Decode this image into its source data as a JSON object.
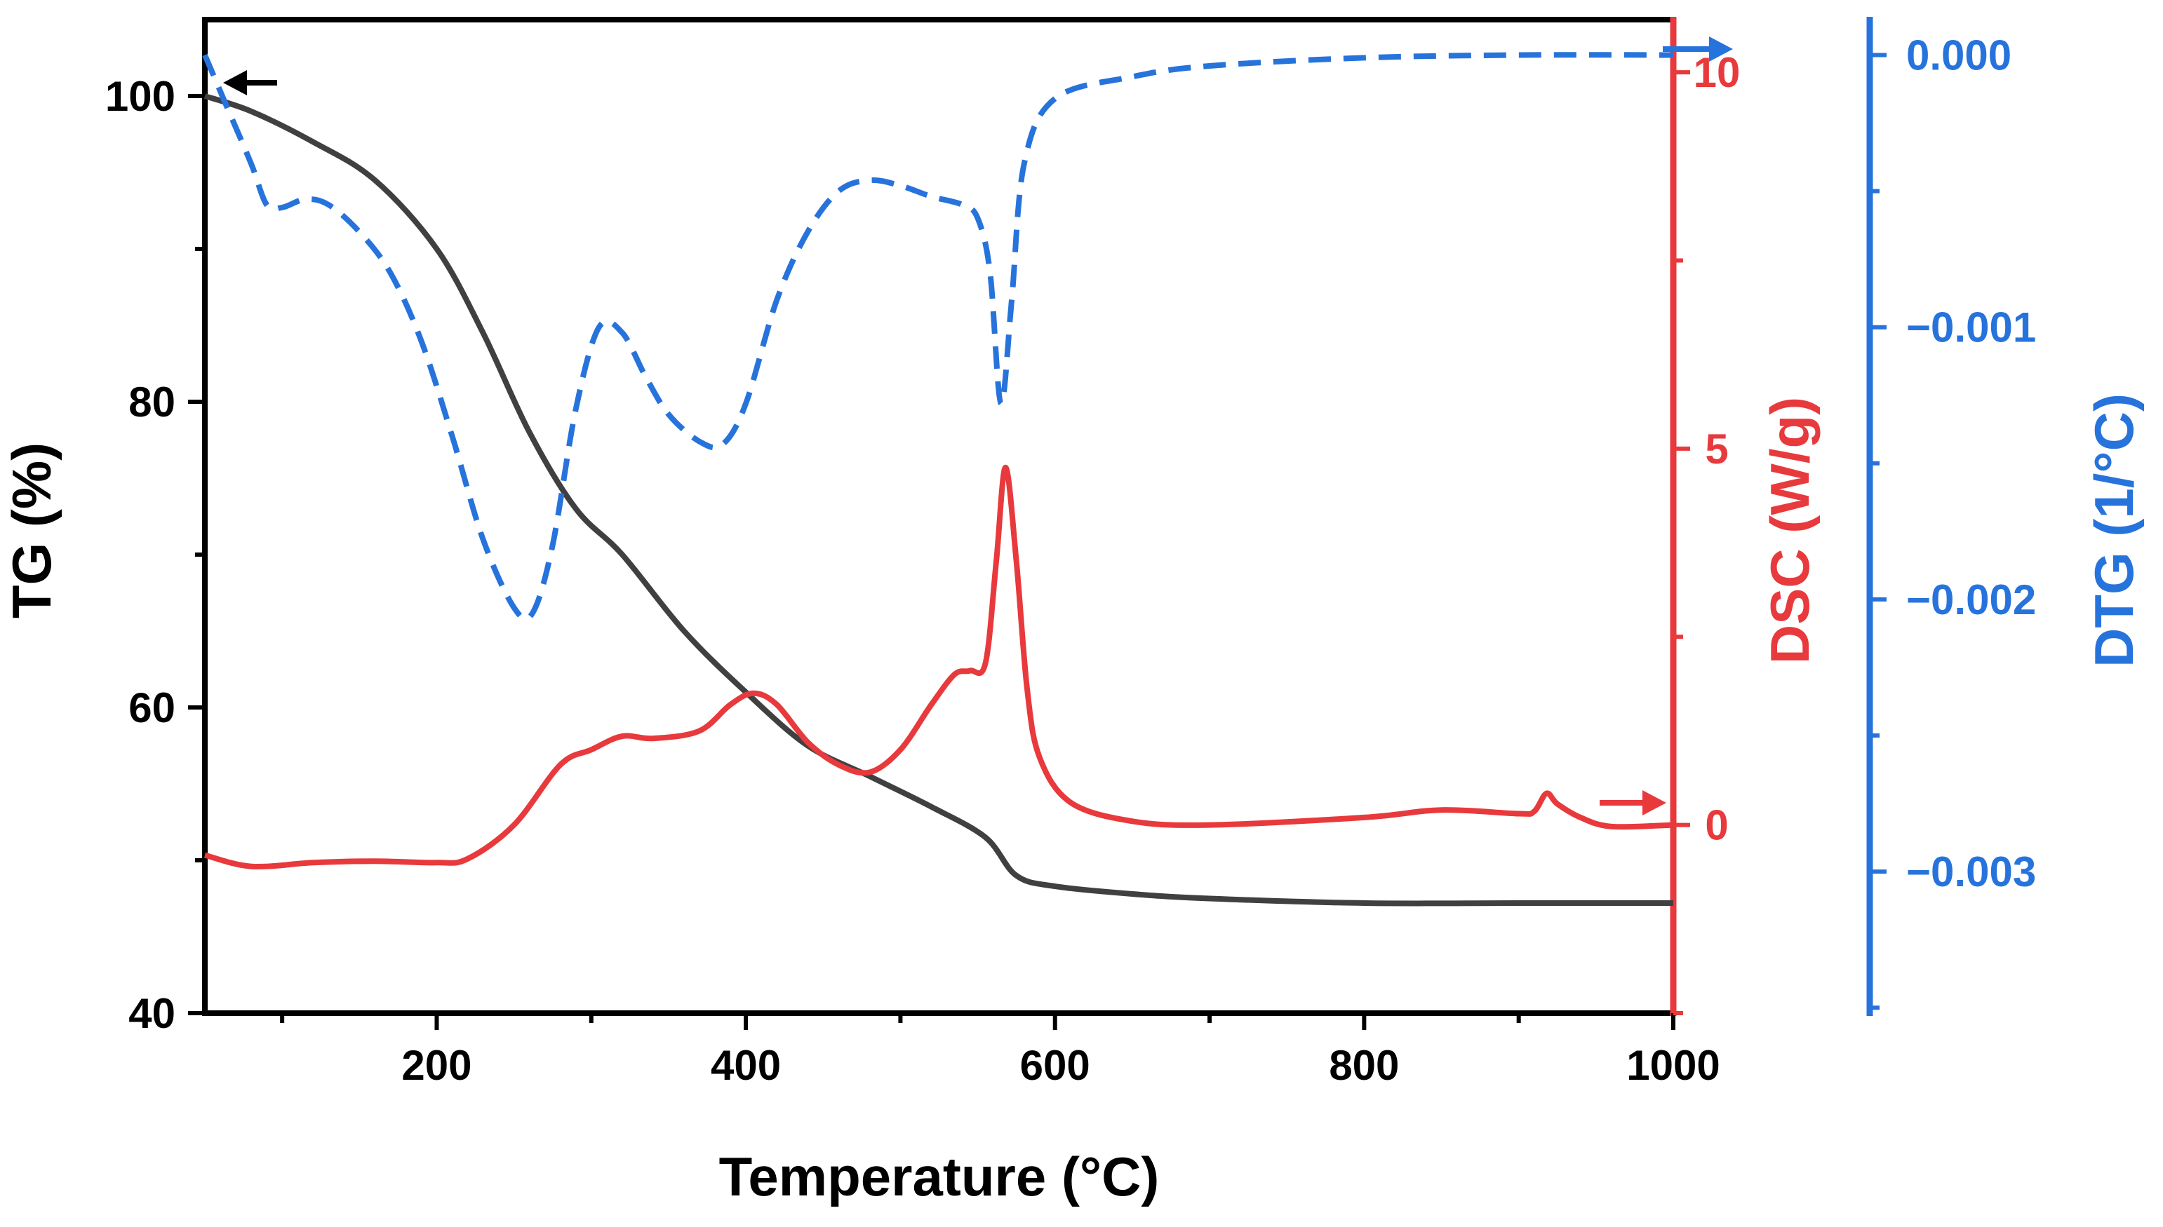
{
  "chart_data": {
    "type": "line",
    "xlabel": "Temperature (°C)",
    "xlim": [
      50,
      1000
    ],
    "x_ticks": [
      200,
      400,
      600,
      800,
      1000
    ],
    "axes": {
      "tg": {
        "label": "TG (%)",
        "range": [
          40,
          105
        ],
        "ticks": [
          40,
          60,
          80,
          100
        ],
        "color": "#000000",
        "side": "left"
      },
      "dsc": {
        "label": "DSC (W/g)",
        "range": [
          -2.5,
          10.7
        ],
        "ticks": [
          0,
          5,
          10
        ],
        "color": "#e8393c",
        "side": "right"
      },
      "dtg": {
        "label": "DTG (1/°C)",
        "range": [
          -0.00352,
          0.00013
        ],
        "ticks": [
          0.0,
          -0.001,
          -0.002,
          -0.003
        ],
        "tick_labels": [
          "0.000",
          "−0.001",
          "−0.002",
          "−0.003"
        ],
        "color": "#2773dc",
        "side": "right-outer"
      }
    },
    "series": [
      {
        "name": "TG",
        "axis": "tg",
        "color": "#404040",
        "style": "solid",
        "x": [
          50,
          80,
          120,
          160,
          200,
          230,
          260,
          290,
          320,
          360,
          400,
          440,
          480,
          520,
          555,
          575,
          600,
          650,
          700,
          800,
          900,
          1000
        ],
        "y": [
          100,
          99,
          97,
          94.5,
          90,
          84.5,
          78,
          73,
          70,
          65,
          61,
          57.5,
          55.5,
          53.5,
          51.5,
          49,
          48.3,
          47.8,
          47.5,
          47.2,
          47.2,
          47.2
        ]
      },
      {
        "name": "DSC",
        "axis": "dsc",
        "color": "#e8393c",
        "style": "solid",
        "x": [
          50,
          80,
          120,
          160,
          200,
          220,
          250,
          280,
          300,
          320,
          340,
          370,
          390,
          405,
          420,
          440,
          460,
          480,
          500,
          520,
          535,
          545,
          555,
          562,
          568,
          575,
          582,
          590,
          610,
          650,
          700,
          800,
          850,
          900,
          910,
          918,
          925,
          940,
          960,
          1000
        ],
        "y": [
          -0.4,
          -0.55,
          -0.5,
          -0.48,
          -0.5,
          -0.45,
          0,
          0.8,
          1.0,
          1.18,
          1.15,
          1.25,
          1.6,
          1.75,
          1.6,
          1.1,
          0.8,
          0.7,
          1.0,
          1.6,
          2.0,
          2.05,
          2.15,
          3.5,
          4.75,
          3.5,
          1.8,
          0.9,
          0.3,
          0.05,
          0,
          0.1,
          0.2,
          0.15,
          0.18,
          0.42,
          0.28,
          0.1,
          -0.02,
          0
        ]
      },
      {
        "name": "DTG",
        "axis": "dtg",
        "color": "#2773dc",
        "style": "dashed",
        "x": [
          50,
          65,
          80,
          90,
          100,
          115,
          130,
          150,
          170,
          190,
          210,
          230,
          250,
          262,
          275,
          290,
          305,
          320,
          335,
          350,
          370,
          385,
          400,
          420,
          440,
          460,
          480,
          500,
          520,
          540,
          550,
          558,
          565,
          572,
          580,
          600,
          650,
          700,
          800,
          900,
          1000
        ],
        "y": [
          0.0,
          -0.0002,
          -0.0004,
          -0.00055,
          -0.00056,
          -0.00053,
          -0.00055,
          -0.00065,
          -0.0008,
          -0.00105,
          -0.0014,
          -0.00178,
          -0.00203,
          -0.00205,
          -0.0018,
          -0.0013,
          -0.001,
          -0.00102,
          -0.00118,
          -0.00132,
          -0.00142,
          -0.00143,
          -0.00128,
          -0.0009,
          -0.00065,
          -0.0005,
          -0.00046,
          -0.00048,
          -0.00052,
          -0.00055,
          -0.0006,
          -0.0008,
          -0.00128,
          -0.0009,
          -0.0004,
          -0.00016,
          -8e-05,
          -4e-05,
          -1e-05,
          0.0,
          0.0
        ]
      }
    ],
    "annotations": [
      {
        "type": "arrow",
        "series": "TG",
        "direction": "left",
        "color": "#000000"
      },
      {
        "type": "arrow",
        "series": "DSC",
        "direction": "right",
        "color": "#e8393c"
      },
      {
        "type": "arrow",
        "series": "DTG",
        "direction": "right",
        "color": "#2773dc"
      }
    ]
  }
}
